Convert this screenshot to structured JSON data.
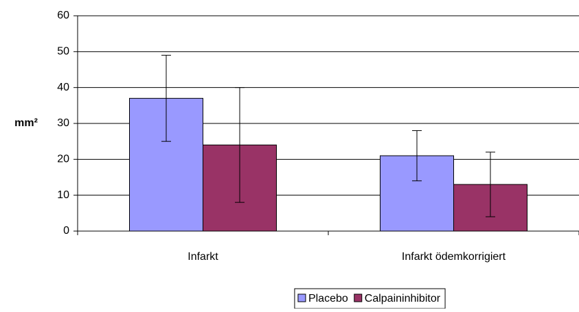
{
  "chart_data": {
    "type": "bar",
    "y_label": "mm²",
    "categories": [
      "Infarkt",
      "Infarkt ödemkorrigiert"
    ],
    "series": [
      {
        "name": "Placebo",
        "color": "#9999ff",
        "values": [
          37,
          21
        ],
        "errors": [
          12,
          7
        ]
      },
      {
        "name": "Calpaininhibitor",
        "color": "#993366",
        "values": [
          24,
          13
        ],
        "errors": [
          16,
          9
        ]
      }
    ],
    "ylim": [
      0,
      60
    ],
    "yticks": [
      0,
      10,
      20,
      30,
      40,
      50,
      60
    ],
    "grid": true,
    "legend": "bottom"
  }
}
